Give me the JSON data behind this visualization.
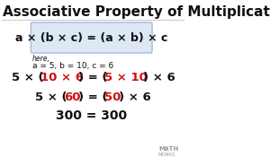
{
  "title": "Associative Property of Multiplication",
  "title_fontsize": 11.0,
  "title_color": "#111111",
  "bg_color": "#ffffff",
  "box_bg_color": "#dde8f5",
  "box_edge_color": "#aabbd4",
  "formula": "a × (b × c) = (a × b) × c",
  "here_label": "here,",
  "values_label": "a = 5, b = 10, c = 6",
  "line3": "300 = 300",
  "black": "#111111",
  "red": "#cc1111",
  "small_fontsize": 5.5,
  "label_fontsize": 6.5,
  "eq_fontsize": 9.5,
  "final_fontsize": 10.0,
  "formula_fontsize": 9.0,
  "seg1": [
    [
      "5 × (",
      "black"
    ],
    [
      "10 × 6",
      "red"
    ],
    [
      ") = (",
      "black"
    ],
    [
      "5 × 10",
      "red"
    ],
    [
      ") × 6",
      "black"
    ]
  ],
  "seg2": [
    [
      "5 × (",
      "black"
    ],
    [
      "60",
      "red"
    ],
    [
      ") = (",
      "black"
    ],
    [
      "50",
      "red"
    ],
    [
      ") × 6",
      "black"
    ]
  ]
}
